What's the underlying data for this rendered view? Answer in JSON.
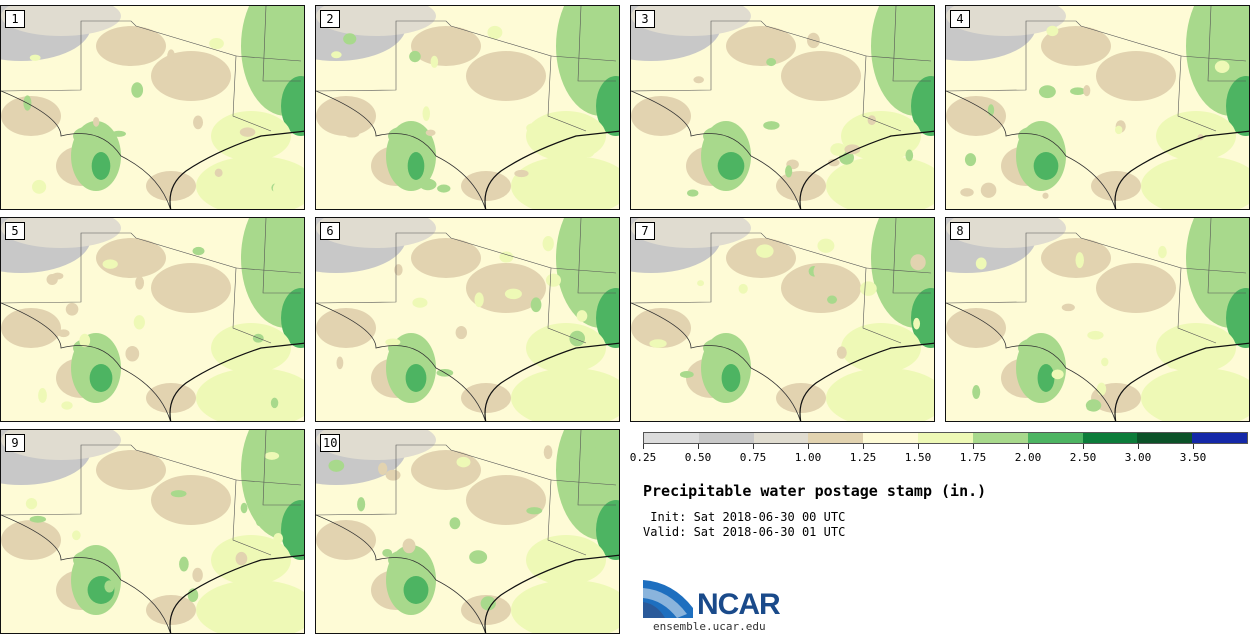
{
  "panels": [
    {
      "label": "1"
    },
    {
      "label": "2"
    },
    {
      "label": "3"
    },
    {
      "label": "4"
    },
    {
      "label": "5"
    },
    {
      "label": "6"
    },
    {
      "label": "7"
    },
    {
      "label": "8"
    },
    {
      "label": "9"
    },
    {
      "label": "10"
    }
  ],
  "colorbar": {
    "colors": [
      "#dcdcdc",
      "#c8c8c8",
      "#e0dcd0",
      "#e2d3b0",
      "#fefbd6",
      "#eef9b6",
      "#a8d98c",
      "#4db462",
      "#0c7c3a",
      "#0b5228",
      "#1428a8"
    ],
    "tick_labels": [
      "0.25",
      "0.50",
      "0.75",
      "1.00",
      "1.25",
      "1.50",
      "1.75",
      "2.00",
      "2.50",
      "3.00",
      "3.50"
    ]
  },
  "title": "Precipitable water postage stamp (in.)",
  "init_line": " Init: Sat 2018-06-30 00 UTC",
  "valid_line": "Valid: Sat 2018-06-30 01 UTC",
  "logo": {
    "name": "NCAR",
    "url": "ensemble.ucar.edu"
  }
}
